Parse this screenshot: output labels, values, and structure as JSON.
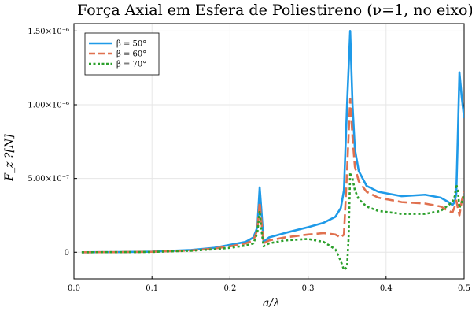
{
  "chart_data": {
    "type": "line",
    "title": "Força Axial em Esfera de Poliestireno (ν=1, no eixo)",
    "xlabel": "a/λ",
    "ylabel": "F_z ?[N]",
    "xlim": [
      0.0,
      0.5
    ],
    "ylim": [
      -1.8e-07,
      1.55e-06
    ],
    "grid": true,
    "legend_position": "top-left",
    "x_ticks": [
      {
        "value": 0.0,
        "label": "0.0"
      },
      {
        "value": 0.1,
        "label": "0.1"
      },
      {
        "value": 0.2,
        "label": "0.2"
      },
      {
        "value": 0.3,
        "label": "0.3"
      },
      {
        "value": 0.4,
        "label": "0.4"
      },
      {
        "value": 0.5,
        "label": "0.5"
      }
    ],
    "y_ticks": [
      {
        "value": 0,
        "label": "0"
      },
      {
        "value": 5e-07,
        "label": "5.00×10⁻⁷"
      },
      {
        "value": 1e-06,
        "label": "1.00×10⁻⁶"
      },
      {
        "value": 1.5e-06,
        "label": "1.50×10⁻⁶"
      }
    ],
    "series": [
      {
        "name": "β = 50°",
        "color": "#1f9ae8",
        "style": "solid",
        "points": [
          [
            0.01,
            0
          ],
          [
            0.05,
            8e-10
          ],
          [
            0.1,
            4e-09
          ],
          [
            0.15,
            1.5e-08
          ],
          [
            0.18,
            3e-08
          ],
          [
            0.2,
            5e-08
          ],
          [
            0.22,
            7e-08
          ],
          [
            0.23,
            1e-07
          ],
          [
            0.235,
            1.7e-07
          ],
          [
            0.238,
            4.4e-07
          ],
          [
            0.24,
            3e-07
          ],
          [
            0.243,
            7e-08
          ],
          [
            0.25,
            1e-07
          ],
          [
            0.27,
            1.3e-07
          ],
          [
            0.3,
            1.7e-07
          ],
          [
            0.32,
            2e-07
          ],
          [
            0.335,
            2.4e-07
          ],
          [
            0.342,
            3e-07
          ],
          [
            0.346,
            4.2e-07
          ],
          [
            0.35,
            1e-06
          ],
          [
            0.354,
            1.5e-06
          ],
          [
            0.357,
            1e-06
          ],
          [
            0.36,
            7e-07
          ],
          [
            0.365,
            5.5e-07
          ],
          [
            0.375,
            4.5e-07
          ],
          [
            0.39,
            4.1e-07
          ],
          [
            0.42,
            3.8e-07
          ],
          [
            0.45,
            3.9e-07
          ],
          [
            0.47,
            3.7e-07
          ],
          [
            0.48,
            3.4e-07
          ],
          [
            0.485,
            3.2e-07
          ],
          [
            0.488,
            3.4e-07
          ],
          [
            0.49,
            4e-07
          ],
          [
            0.492,
            8e-07
          ],
          [
            0.494,
            1.22e-06
          ],
          [
            0.497,
            1.05e-06
          ],
          [
            0.5,
            9.1e-07
          ]
        ]
      },
      {
        "name": "β = 60°",
        "color": "#e0714f",
        "style": "dashed",
        "points": [
          [
            0.01,
            0
          ],
          [
            0.05,
            5e-10
          ],
          [
            0.1,
            3e-09
          ],
          [
            0.15,
            1.2e-08
          ],
          [
            0.18,
            2.5e-08
          ],
          [
            0.2,
            4e-08
          ],
          [
            0.22,
            6e-08
          ],
          [
            0.23,
            8e-08
          ],
          [
            0.235,
            1.5e-07
          ],
          [
            0.238,
            3.4e-07
          ],
          [
            0.24,
            2.2e-07
          ],
          [
            0.243,
            6e-08
          ],
          [
            0.25,
            8e-08
          ],
          [
            0.27,
            1e-07
          ],
          [
            0.3,
            1.2e-07
          ],
          [
            0.32,
            1.3e-07
          ],
          [
            0.335,
            1.2e-07
          ],
          [
            0.342,
            1e-07
          ],
          [
            0.346,
            1.2e-07
          ],
          [
            0.35,
            5.5e-07
          ],
          [
            0.354,
            1.04e-06
          ],
          [
            0.357,
            7.8e-07
          ],
          [
            0.36,
            5.8e-07
          ],
          [
            0.365,
            4.8e-07
          ],
          [
            0.375,
            4.1e-07
          ],
          [
            0.39,
            3.7e-07
          ],
          [
            0.42,
            3.4e-07
          ],
          [
            0.45,
            3.3e-07
          ],
          [
            0.47,
            3.1e-07
          ],
          [
            0.48,
            2.8e-07
          ],
          [
            0.485,
            2.7e-07
          ],
          [
            0.488,
            3.1e-07
          ],
          [
            0.49,
            3.5e-07
          ],
          [
            0.492,
            3e-07
          ],
          [
            0.494,
            2.5e-07
          ],
          [
            0.497,
            3.5e-07
          ],
          [
            0.5,
            4.1e-07
          ]
        ]
      },
      {
        "name": "β = 70°",
        "color": "#2ca02c",
        "style": "dotted",
        "points": [
          [
            0.01,
            0
          ],
          [
            0.05,
            4e-10
          ],
          [
            0.1,
            2e-09
          ],
          [
            0.15,
            1e-08
          ],
          [
            0.18,
            2e-08
          ],
          [
            0.2,
            3e-08
          ],
          [
            0.22,
            4.5e-08
          ],
          [
            0.23,
            6e-08
          ],
          [
            0.235,
            1.3e-07
          ],
          [
            0.238,
            2.8e-07
          ],
          [
            0.24,
            1.6e-07
          ],
          [
            0.243,
            4e-08
          ],
          [
            0.25,
            6e-08
          ],
          [
            0.27,
            8e-08
          ],
          [
            0.3,
            9e-08
          ],
          [
            0.32,
            7e-08
          ],
          [
            0.335,
            2e-08
          ],
          [
            0.342,
            -6e-08
          ],
          [
            0.346,
            -1.2e-07
          ],
          [
            0.35,
            -1e-07
          ],
          [
            0.352,
            1e-07
          ],
          [
            0.354,
            5.4e-07
          ],
          [
            0.357,
            5e-07
          ],
          [
            0.36,
            4.2e-07
          ],
          [
            0.365,
            3.6e-07
          ],
          [
            0.375,
            3.1e-07
          ],
          [
            0.39,
            2.8e-07
          ],
          [
            0.42,
            2.6e-07
          ],
          [
            0.45,
            2.6e-07
          ],
          [
            0.47,
            2.8e-07
          ],
          [
            0.48,
            3.2e-07
          ],
          [
            0.485,
            3.4e-07
          ],
          [
            0.488,
            3.8e-07
          ],
          [
            0.49,
            4.6e-07
          ],
          [
            0.492,
            4.2e-07
          ],
          [
            0.494,
            3e-07
          ],
          [
            0.497,
            3.4e-07
          ],
          [
            0.5,
            3.9e-07
          ]
        ]
      }
    ]
  }
}
